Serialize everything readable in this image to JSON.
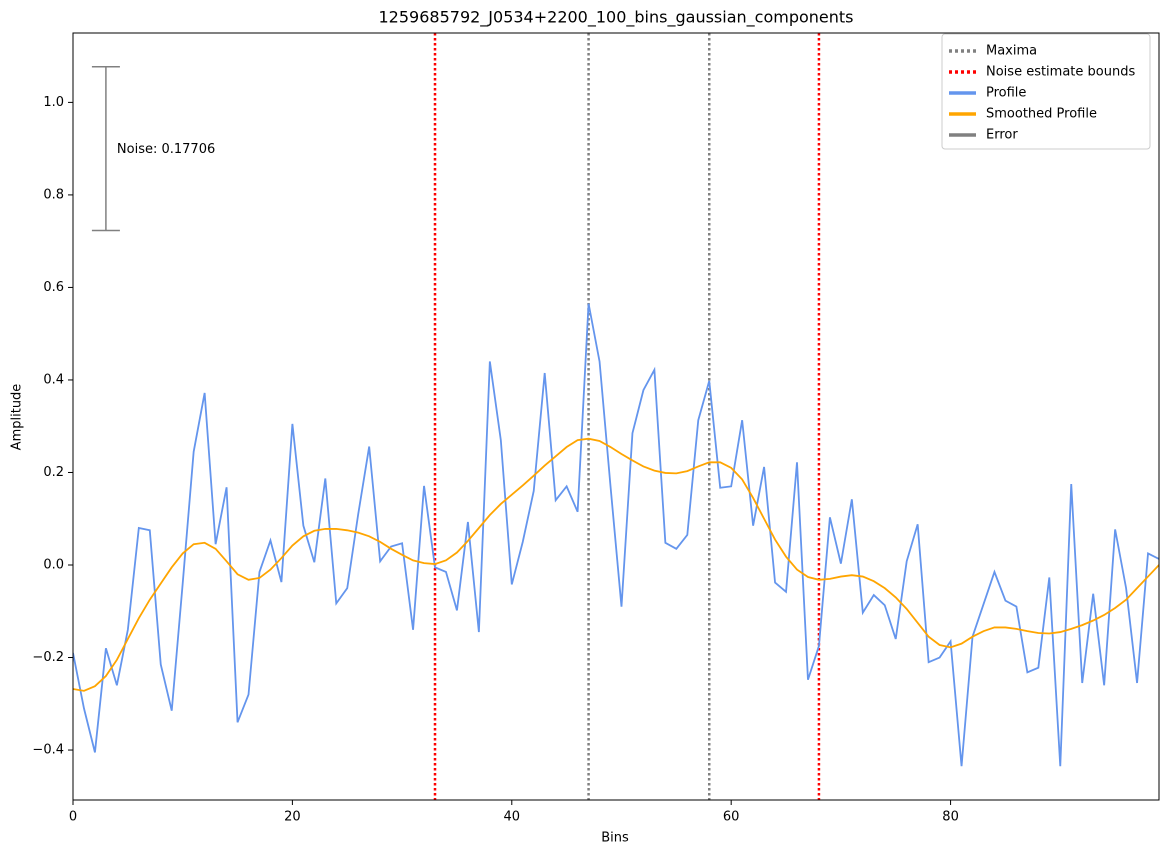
{
  "chart_data": {
    "type": "line",
    "title": "1259685792_J0534+2200_100_bins_gaussian_components",
    "xlabel": "Bins",
    "ylabel": "Amplitude",
    "x": [
      0,
      1,
      2,
      3,
      4,
      5,
      6,
      7,
      8,
      9,
      10,
      11,
      12,
      13,
      14,
      15,
      16,
      17,
      18,
      19,
      20,
      21,
      22,
      23,
      24,
      25,
      26,
      27,
      28,
      29,
      30,
      31,
      32,
      33,
      34,
      35,
      36,
      37,
      38,
      39,
      40,
      41,
      42,
      43,
      44,
      45,
      46,
      47,
      48,
      49,
      50,
      51,
      52,
      53,
      54,
      55,
      56,
      57,
      58,
      59,
      60,
      61,
      62,
      63,
      64,
      65,
      66,
      67,
      68,
      69,
      70,
      71,
      72,
      73,
      74,
      75,
      76,
      77,
      78,
      79,
      80,
      81,
      82,
      83,
      84,
      85,
      86,
      87,
      88,
      89,
      90,
      91,
      92,
      93,
      94,
      95,
      96,
      97,
      98,
      99
    ],
    "series": [
      {
        "name": "Profile",
        "color": "#6495ed",
        "values": [
          -0.19,
          -0.31,
          -0.405,
          -0.18,
          -0.26,
          -0.14,
          0.08,
          0.075,
          -0.215,
          -0.315,
          -0.04,
          0.245,
          0.372,
          0.045,
          0.168,
          -0.34,
          -0.28,
          -0.015,
          0.053,
          -0.037,
          0.305,
          0.085,
          0.006,
          0.187,
          -0.083,
          -0.05,
          0.11,
          0.256,
          0.008,
          0.04,
          0.047,
          -0.14,
          0.171,
          -0.005,
          -0.015,
          -0.098,
          0.093,
          -0.145,
          0.44,
          0.27,
          -0.042,
          0.05,
          0.16,
          0.415,
          0.14,
          0.17,
          0.115,
          0.565,
          0.44,
          0.17,
          -0.09,
          0.285,
          0.378,
          0.422,
          0.048,
          0.035,
          0.065,
          0.313,
          0.398,
          0.167,
          0.17,
          0.313,
          0.085,
          0.212,
          -0.038,
          -0.058,
          0.222,
          -0.248,
          -0.175,
          0.103,
          0.003,
          0.142,
          -0.103,
          -0.065,
          -0.087,
          -0.16,
          0.008,
          0.088,
          -0.21,
          -0.2,
          -0.165,
          -0.435,
          -0.155,
          -0.085,
          -0.015,
          -0.077,
          -0.09,
          -0.232,
          -0.222,
          -0.027,
          -0.435,
          0.175,
          -0.255,
          -0.062,
          -0.26,
          0.077,
          -0.05,
          -0.255,
          0.025,
          0.013
        ]
      },
      {
        "name": "Smoothed Profile",
        "color": "#ffa500",
        "values": [
          -0.268,
          -0.272,
          -0.262,
          -0.24,
          -0.205,
          -0.16,
          -0.115,
          -0.075,
          -0.04,
          -0.005,
          0.025,
          0.045,
          0.048,
          0.035,
          0.008,
          -0.02,
          -0.032,
          -0.028,
          -0.01,
          0.015,
          0.042,
          0.062,
          0.074,
          0.078,
          0.078,
          0.075,
          0.07,
          0.062,
          0.05,
          0.035,
          0.022,
          0.01,
          0.004,
          0.002,
          0.01,
          0.027,
          0.052,
          0.08,
          0.108,
          0.132,
          0.152,
          0.172,
          0.193,
          0.215,
          0.235,
          0.255,
          0.27,
          0.273,
          0.268,
          0.255,
          0.24,
          0.226,
          0.213,
          0.204,
          0.199,
          0.198,
          0.203,
          0.213,
          0.222,
          0.222,
          0.21,
          0.185,
          0.145,
          0.1,
          0.055,
          0.018,
          -0.01,
          -0.026,
          -0.032,
          -0.03,
          -0.025,
          -0.022,
          -0.025,
          -0.035,
          -0.05,
          -0.07,
          -0.095,
          -0.125,
          -0.155,
          -0.173,
          -0.178,
          -0.17,
          -0.155,
          -0.143,
          -0.135,
          -0.135,
          -0.138,
          -0.143,
          -0.147,
          -0.148,
          -0.145,
          -0.138,
          -0.13,
          -0.12,
          -0.108,
          -0.093,
          -0.075,
          -0.05,
          -0.025,
          0.0
        ]
      }
    ],
    "vlines": [
      {
        "name": "Maxima",
        "color": "#808080",
        "x": [
          47,
          58
        ]
      },
      {
        "name": "Noise estimate bounds",
        "color": "#ff0000",
        "x": [
          33,
          68
        ]
      }
    ],
    "error": {
      "name": "Error",
      "color": "#808080",
      "x": 3,
      "y": 0.9,
      "err": 0.17706
    },
    "annotation": "Noise: 0.17706",
    "xlim": [
      0,
      99
    ],
    "ylim": [
      -0.508,
      1.15
    ],
    "xticks": [
      0,
      20,
      40,
      60,
      80
    ],
    "yticks": [
      {
        "value": -0.4,
        "label": "−0.4"
      },
      {
        "value": -0.2,
        "label": "−0.2"
      },
      {
        "value": 0,
        "label": "0.0"
      },
      0.2,
      0.4,
      0.6,
      0.8,
      {
        "value": 1.0,
        "label": "1.0"
      }
    ],
    "legend": "upper right"
  }
}
